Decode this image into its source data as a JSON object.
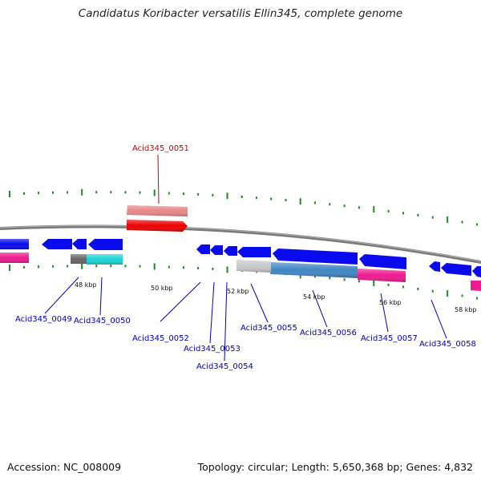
{
  "title": "Candidatus Koribacter versatilis Ellin345, complete genome",
  "footer": {
    "accession": "Accession: NC_008009",
    "summary": "Topology: circular; Length: 5,650,368 bp; Genes: 4,832"
  },
  "colors": {
    "backbone": "#8a8a8a",
    "ticks": "#1e8c1e",
    "highlight_label": "#cc0000",
    "gene_label": "#0000bb",
    "blue_gene": "#0a0aee",
    "magenta_gene": "#ee1a90",
    "cyan_gene": "#1ad4d4",
    "gray_gene": "#666666",
    "lightgray_gene": "#c8c8c8",
    "steelblue_gene": "#3f86c4",
    "red_gene": "#ee0000",
    "pink_gene": "#e88888"
  },
  "kbp_labels": [
    "48 kbp",
    "50 kbp",
    "52 kbp",
    "54 kbp",
    "56 kbp",
    "58 kbp"
  ],
  "gene_labels": [
    {
      "id": "Acid345_0049",
      "text": "Acid345_0049"
    },
    {
      "id": "Acid345_0050",
      "text": "Acid345_0050"
    },
    {
      "id": "Acid345_0051",
      "text": "Acid345_0051"
    },
    {
      "id": "Acid345_0052",
      "text": "Acid345_0052"
    },
    {
      "id": "Acid345_0053",
      "text": "Acid345_0053"
    },
    {
      "id": "Acid345_0054",
      "text": "Acid345_0054"
    },
    {
      "id": "Acid345_0055",
      "text": "Acid345_0055"
    },
    {
      "id": "Acid345_0056",
      "text": "Acid345_0056"
    },
    {
      "id": "Acid345_0057",
      "text": "Acid345_0057"
    },
    {
      "id": "Acid345_0058",
      "text": "Acid345_0058"
    }
  ]
}
